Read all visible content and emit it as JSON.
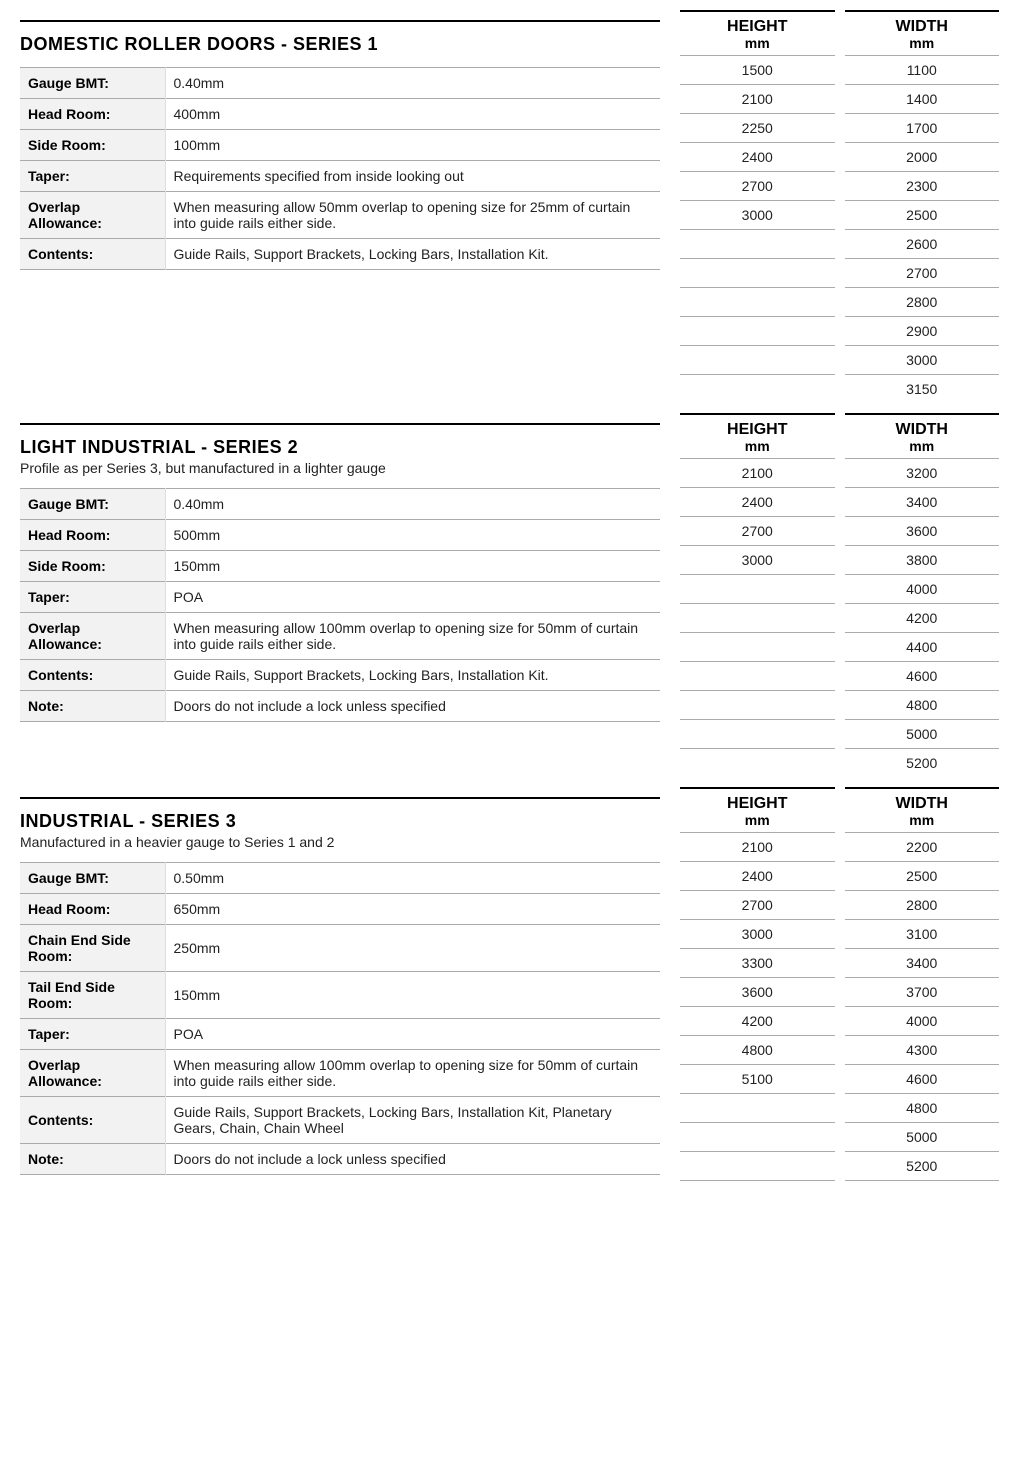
{
  "series": [
    {
      "title": "DOMESTIC ROLLER DOORS - SERIES 1",
      "subtitle": "",
      "specs": [
        {
          "label": "Gauge BMT:",
          "value": "0.40mm"
        },
        {
          "label": "Head Room:",
          "value": "400mm"
        },
        {
          "label": "Side Room:",
          "value": "100mm"
        },
        {
          "label": "Taper:",
          "value": "Requirements specified from inside looking out"
        },
        {
          "label": "Overlap Allowance:",
          "value": "When measuring allow 50mm overlap to opening size for 25mm of curtain into guide rails either side."
        },
        {
          "label": "Contents:",
          "value": "Guide Rails, Support Brackets, Locking Bars, Installation Kit."
        }
      ],
      "heights": [
        "1500",
        "2100",
        "2250",
        "2400",
        "2700",
        "3000",
        "",
        "",
        "",
        "",
        "",
        ""
      ],
      "widths": [
        "1100",
        "1400",
        "1700",
        "2000",
        "2300",
        "2500",
        "2600",
        "2700",
        "2800",
        "2900",
        "3000",
        "3150"
      ]
    },
    {
      "title": "LIGHT INDUSTRIAL - SERIES 2",
      "subtitle": "Profile as per Series 3, but manufactured in a lighter gauge",
      "specs": [
        {
          "label": "Gauge BMT:",
          "value": "0.40mm"
        },
        {
          "label": "Head Room:",
          "value": "500mm"
        },
        {
          "label": "Side Room:",
          "value": "150mm"
        },
        {
          "label": "Taper:",
          "value": "POA"
        },
        {
          "label": "Overlap Allowance:",
          "value": "When measuring allow 100mm overlap to opening size for 50mm of curtain into guide rails either side."
        },
        {
          "label": "Contents:",
          "value": "Guide Rails, Support Brackets, Locking Bars, Installation Kit."
        },
        {
          "label": "Note:",
          "value": "Doors do not include a lock unless specified"
        }
      ],
      "heights": [
        "2100",
        "2400",
        "2700",
        "3000",
        "",
        "",
        "",
        "",
        "",
        "",
        ""
      ],
      "widths": [
        "3200",
        "3400",
        "3600",
        "3800",
        "4000",
        "4200",
        "4400",
        "4600",
        "4800",
        "5000",
        "5200"
      ]
    },
    {
      "title": "INDUSTRIAL - SERIES 3",
      "subtitle": "Manufactured in a heavier gauge to Series 1 and 2",
      "specs": [
        {
          "label": "Gauge BMT:",
          "value": "0.50mm"
        },
        {
          "label": "Head Room:",
          "value": "650mm"
        },
        {
          "label": "Chain End Side Room:",
          "value": "250mm"
        },
        {
          "label": "Tail End Side Room:",
          "value": "150mm"
        },
        {
          "label": "Taper:",
          "value": "POA"
        },
        {
          "label": "Overlap Allowance:",
          "value": "When measuring allow 100mm overlap to opening size for 50mm of curtain into guide rails either side."
        },
        {
          "label": "Contents:",
          "value": "Guide Rails, Support Brackets, Locking Bars, Installation Kit, Planetary Gears, Chain, Chain Wheel"
        },
        {
          "label": "Note:",
          "value": "Doors do not include a lock unless specified"
        }
      ],
      "heights": [
        "2100",
        "2400",
        "2700",
        "3000",
        "3300",
        "3600",
        "4200",
        "4800",
        "5100",
        "",
        "",
        "",
        ""
      ],
      "widths": [
        "2200",
        "2500",
        "2800",
        "3100",
        "3400",
        "3700",
        "4000",
        "4300",
        "4600",
        "4800",
        "5000",
        "5200",
        ""
      ]
    }
  ],
  "size_headers": {
    "height_label": "HEIGHT",
    "width_label": "WIDTH",
    "unit": "mm"
  }
}
